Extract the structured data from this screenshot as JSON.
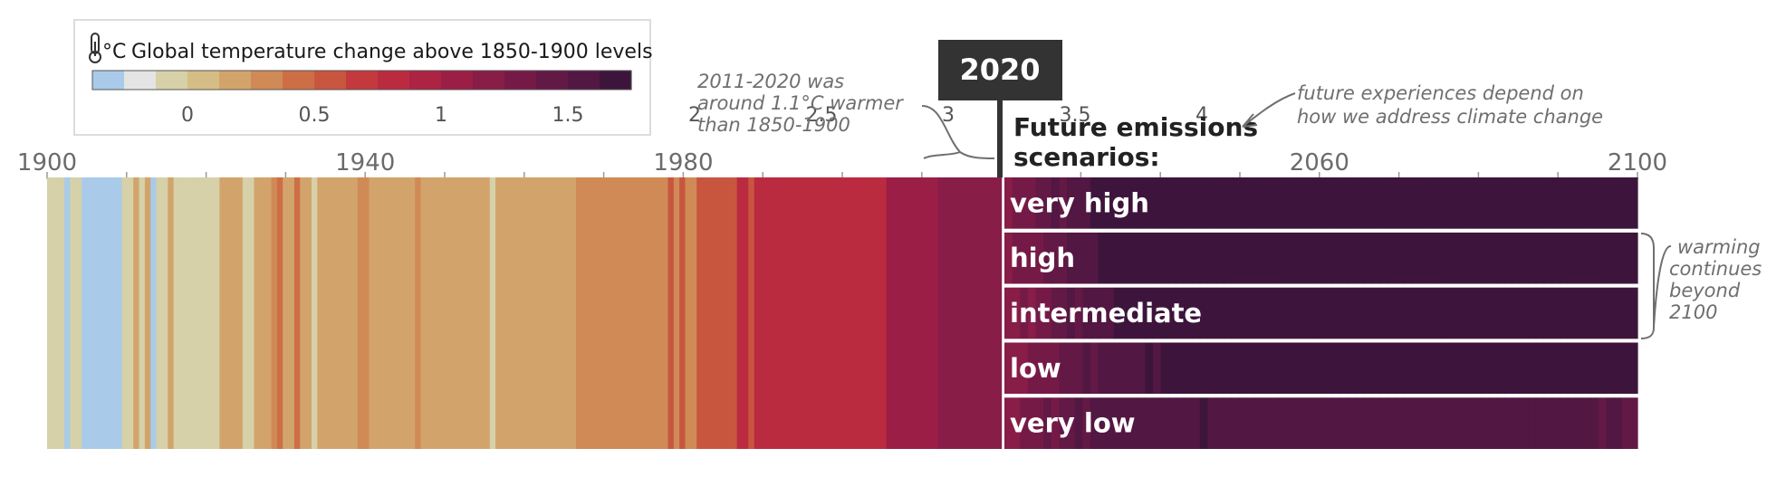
{
  "legend": {
    "title": "Global temperature change above 1850-1900 levels",
    "unit": "°C",
    "tick_labels": [
      "0",
      "0.5",
      "1",
      "1.5",
      "2",
      "2.5",
      "3",
      "3.5",
      "4"
    ],
    "tick_values": [
      0,
      0.5,
      1,
      1.5,
      2,
      2.5,
      3,
      3.5,
      4
    ],
    "scale_min": -0.375,
    "bin_width": 0.125,
    "colors": [
      "#a9cbe9",
      "#e4e4e4",
      "#d6d1a8",
      "#d5bd85",
      "#d2a46c",
      "#d08a56",
      "#ce6e47",
      "#c8563f",
      "#c4393d",
      "#bb2b40",
      "#ac2343",
      "#9a1e45",
      "#881d47",
      "#751a47",
      "#631945",
      "#521742",
      "#3d153c"
    ]
  },
  "annotations": {
    "year_box": "2020",
    "past_note": [
      "2011-2020 was",
      "around 1.1°C warmer",
      "than 1850-1900"
    ],
    "future_note": [
      "future experiences depend on",
      "how we address climate change"
    ],
    "future_title": [
      "Future emissions",
      "scenarios:"
    ],
    "beyond_note": [
      "warming",
      "continues",
      "beyond",
      "2100"
    ]
  },
  "chart_data": {
    "type": "heatmap",
    "title": "",
    "xlabel": "",
    "ylabel": "",
    "x_ticks": [
      1900,
      1940,
      1980,
      2060,
      2100
    ],
    "x_tick_labels": [
      "1900",
      "1940",
      "1980",
      "2060",
      "2100"
    ],
    "xlim": [
      1900,
      2100
    ],
    "units": "°C",
    "historical": {
      "start_year": 1900,
      "values": [
        -0.1,
        -0.1,
        -0.1,
        -0.3,
        -0.1,
        -0.1,
        -0.3,
        -0.3,
        -0.3,
        -0.3,
        -0.3,
        -0.3,
        -0.3,
        -0.1,
        -0.1,
        0.2,
        -0.1,
        0.2,
        -0.3,
        -0.1,
        -0.1,
        0.2,
        -0.1,
        -0.1,
        -0.1,
        -0.1,
        -0.1,
        -0.1,
        -0.1,
        -0.1,
        0.2,
        0.2,
        0.2,
        0.2,
        -0.1,
        -0.1,
        0.2,
        0.2,
        0.2,
        0.3,
        0.4,
        0.2,
        0.2,
        0.4,
        0.2,
        0.2,
        -0.1,
        0.2,
        0.2,
        0.2,
        0.2,
        0.2,
        0.2,
        0.2,
        0.3,
        0.3,
        0.2,
        0.2,
        0.2,
        0.2,
        0.2,
        0.2,
        0.2,
        0.2,
        0.3,
        0.2,
        0.2,
        0.2,
        0.2,
        0.2,
        0.2,
        0.2,
        0.2,
        0.2,
        0.2,
        0.2,
        0.2,
        -0.1,
        0.2,
        0.2,
        0.2,
        0.2,
        0.2,
        0.2,
        0.2,
        0.2,
        0.2,
        0.2,
        0.2,
        0.2,
        0.2,
        0.2,
        0.3,
        0.3,
        0.3,
        0.3,
        0.3,
        0.3,
        0.3,
        0.3,
        0.3,
        0.3,
        0.3,
        0.3,
        0.3,
        0.3,
        0.3,
        0.3,
        0.6,
        0.3,
        0.6,
        0.3,
        0.3,
        0.6,
        0.6,
        0.6,
        0.6,
        0.6,
        0.6,
        0.6,
        0.8,
        0.8,
        0.6,
        0.8,
        0.8,
        0.8,
        0.8,
        0.8,
        0.8,
        0.8,
        0.8,
        0.8,
        0.8,
        0.8,
        0.8,
        0.8,
        0.8,
        0.8,
        0.8,
        0.8,
        0.8,
        0.8,
        0.8,
        0.8,
        0.8,
        0.8,
        1.1,
        1.1,
        1.1,
        1.1,
        1.1,
        1.1,
        1.1,
        1.1,
        1.1,
        1.2,
        1.2,
        1.2,
        1.2,
        1.2,
        1.2,
        1.2,
        1.2,
        1.2,
        1.2,
        1.2
      ]
    },
    "series": [
      {
        "name": "very high",
        "start_year": 2020,
        "values": [
          1.2,
          1.3,
          1.3,
          1.3,
          1.4,
          1.4,
          1.5,
          1.4,
          1.5,
          1.6,
          1.6,
          1.7,
          1.8,
          1.9,
          1.9,
          2.0,
          2.1,
          2.2,
          2.3,
          2.4,
          2.5,
          2.5,
          2.6,
          2.7,
          2.7,
          2.8,
          2.9,
          3.0,
          3.1,
          3.2,
          3.3,
          3.3,
          3.5,
          3.4,
          3.5,
          3.6,
          3.7,
          3.8,
          3.8,
          3.9,
          4.0,
          4.0,
          4.1,
          4.0,
          4.1,
          4.1,
          4.1,
          4.1,
          4.1,
          4.1,
          4.1,
          4.1,
          4.1,
          4.1,
          4.1,
          4.1,
          4.1,
          4.1,
          4.1,
          4.1,
          4.1,
          4.1,
          4.1,
          4.1,
          4.1,
          4.1,
          4.1,
          4.1,
          4.1,
          4.1,
          4.1,
          4.1,
          4.1,
          4.1,
          4.1,
          4.1,
          4.1,
          4.1,
          4.1,
          4.1,
          4.1
        ]
      },
      {
        "name": "high",
        "start_year": 2020,
        "values": [
          1.2,
          1.3,
          1.3,
          1.3,
          1.3,
          1.4,
          1.4,
          1.4,
          1.5,
          1.5,
          1.6,
          1.6,
          1.7,
          1.8,
          1.8,
          1.9,
          2.0,
          2.1,
          2.1,
          2.2,
          2.3,
          2.3,
          2.4,
          2.5,
          2.6,
          2.6,
          2.7,
          2.8,
          2.9,
          2.9,
          3.0,
          3.1,
          3.2,
          3.2,
          3.3,
          3.4,
          3.5,
          3.5,
          3.6,
          3.7,
          3.7,
          3.8,
          3.8,
          3.9,
          3.9,
          4.0,
          4.0,
          4.0,
          4.1,
          4.1,
          4.1,
          4.1,
          4.1,
          4.1,
          4.1,
          4.1,
          4.1,
          4.1,
          4.1,
          4.1,
          4.1,
          4.1,
          4.1,
          4.1,
          4.1,
          4.1,
          4.1,
          4.1,
          4.1,
          4.1,
          4.1,
          4.1,
          4.1,
          4.1,
          4.1,
          4.1,
          4.1,
          4.1,
          4.1,
          4.1,
          4.1
        ]
      },
      {
        "name": "intermediate",
        "start_year": 2020,
        "values": [
          1.2,
          1.2,
          1.3,
          1.2,
          1.3,
          1.3,
          1.4,
          1.4,
          1.5,
          1.4,
          1.5,
          1.5,
          1.6,
          1.6,
          1.7,
          1.7,
          1.7,
          1.8,
          1.8,
          1.9,
          1.9,
          2.0,
          2.0,
          2.0,
          2.1,
          2.1,
          2.2,
          2.2,
          2.3,
          2.3,
          2.3,
          2.4,
          2.4,
          2.5,
          2.5,
          2.5,
          2.6,
          2.6,
          2.6,
          2.7,
          2.7,
          2.7,
          2.8,
          2.8,
          2.8,
          2.9,
          2.9,
          2.9,
          3.0,
          3.0,
          3.0,
          3.1,
          3.1,
          3.1,
          3.2,
          3.2,
          3.2,
          3.3,
          3.3,
          3.3,
          3.3,
          3.4,
          3.4,
          3.4,
          3.4,
          3.5,
          3.5,
          3.5,
          3.5,
          3.5,
          3.6,
          3.6,
          3.6,
          3.6,
          3.6,
          3.6,
          3.6,
          3.6,
          3.6,
          3.6,
          3.6
        ]
      },
      {
        "name": "low",
        "start_year": 2020,
        "values": [
          1.2,
          1.2,
          1.2,
          1.3,
          1.3,
          1.3,
          1.3,
          1.4,
          1.4,
          1.4,
          1.5,
          1.4,
          1.5,
          1.5,
          1.6,
          1.6,
          1.6,
          1.6,
          1.7,
          1.6,
          1.7,
          1.7,
          1.7,
          1.7,
          1.8,
          1.7,
          1.8,
          1.8,
          1.8,
          1.8,
          1.8,
          1.9,
          1.8,
          1.9,
          1.9,
          1.9,
          1.9,
          1.9,
          1.9,
          2.0,
          1.9,
          2.0,
          2.0,
          1.9,
          2.0,
          2.0,
          2.0,
          1.9,
          2.0,
          2.0,
          2.1,
          2.0,
          2.0,
          2.1,
          2.0,
          2.0,
          2.1,
          2.0,
          2.0,
          2.1,
          2.0,
          2.1,
          2.0,
          2.1,
          2.0,
          2.1,
          2.1,
          2.0,
          2.1,
          2.1,
          2.0,
          2.1,
          2.1,
          2.1,
          2.1,
          2.1,
          2.1,
          2.1,
          2.0,
          2.1,
          2.1
        ]
      },
      {
        "name": "very low",
        "start_year": 2020,
        "values": [
          1.2,
          1.2,
          1.3,
          1.3,
          1.3,
          1.4,
          1.3,
          1.4,
          1.4,
          1.5,
          1.4,
          1.5,
          1.5,
          1.5,
          1.6,
          1.5,
          1.6,
          1.6,
          1.6,
          1.6,
          1.6,
          1.6,
          1.6,
          1.6,
          1.6,
          1.7,
          1.6,
          1.6,
          1.6,
          1.6,
          1.6,
          1.6,
          1.5,
          1.6,
          1.6,
          1.6,
          1.6,
          1.6,
          1.5,
          1.6,
          1.6,
          1.6,
          1.6,
          1.6,
          1.5,
          1.6,
          1.6,
          1.6,
          1.6,
          1.5,
          1.6,
          1.6,
          1.6,
          1.5,
          1.6,
          1.6,
          1.6,
          1.5,
          1.6,
          1.6,
          1.5,
          1.6,
          1.6,
          1.5,
          1.5,
          1.6,
          1.6,
          1.5,
          1.5,
          1.6,
          1.5,
          1.5,
          1.5,
          1.5,
          1.5,
          1.5,
          1.4,
          1.5,
          1.5,
          1.4,
          1.4
        ]
      }
    ]
  }
}
